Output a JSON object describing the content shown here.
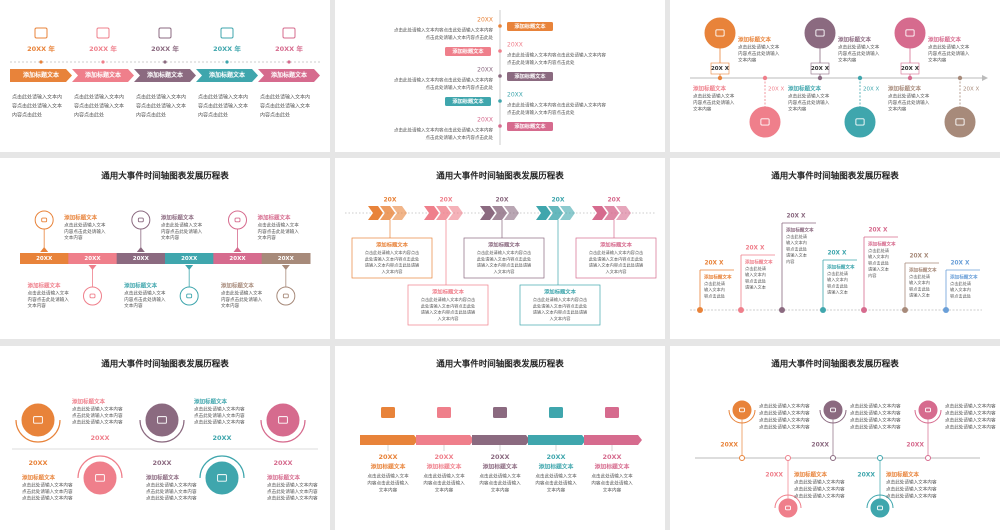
{
  "slides": [
    {
      "items": [
        {
          "date": "20XX 年",
          "heading": "添加标题文本",
          "body": [
            "点击此处请输入文本内",
            "容点击此处请输入文本",
            "内容点击此处"
          ]
        },
        {
          "date": "20XX 年",
          "heading": "添加标题文本",
          "body": [
            "点击此处请输入文本内",
            "容点击此处请输入文本",
            "内容点击此处"
          ]
        },
        {
          "date": "20XX 年",
          "heading": "添加标题文本",
          "body": [
            "点击此处请输入文本内",
            "容点击此处请输入文本",
            "内容点击此处"
          ]
        },
        {
          "date": "20XX 年",
          "heading": "添加标题文本",
          "body": [
            "点击此处请输入文本内",
            "容点击此处请输入文本",
            "内容点击此处"
          ]
        },
        {
          "date": "20XX 年",
          "heading": "添加标题文本",
          "body": [
            "点击此处请输入文本内",
            "容点击此处请输入文本",
            "内容点击此处"
          ]
        }
      ]
    },
    {
      "items": [
        {
          "date": "20XX",
          "heading": "添加标题文本",
          "body": [
            "点击此处请输入文本内容点击此处请输入文本内容",
            "点击此处请输入文本内容点击此处"
          ]
        },
        {
          "date": "20XX",
          "heading": "添加标题文本",
          "body": [
            "点击此处请输入文本内容点击此处请输入文本内容",
            "点击此处请输入文本内容点击此处"
          ]
        },
        {
          "date": "20XX",
          "heading": "添加标题文本",
          "body": [
            "点击此处请输入文本内容点击此处请输入文本内容",
            "点击此处请输入文本内容点击此处"
          ]
        },
        {
          "date": "20XX",
          "heading": "添加标题文本",
          "body": [
            "点击此处请输入文本内容点击此处请输入文本内容",
            "点击此处请输入文本内容点击此处"
          ]
        },
        {
          "date": "20XX",
          "heading": "添加标题文本",
          "body": [
            "点击此处请输入文本内容点击此处请输入文本内容",
            "点击此处请输入文本内容点击此处"
          ]
        }
      ]
    },
    {
      "items": [
        {
          "date": "20X X",
          "heading": "添加标题文本",
          "body": [
            "点击此处请输入文本",
            "内容点击此处请输入",
            "文本内容"
          ]
        },
        {
          "date": "20X X",
          "heading": "添加标题文本",
          "body": [
            "点击此处请输入文本",
            "内容点击此处请输入",
            "文本内容"
          ]
        },
        {
          "date": "20X X",
          "heading": "添加标题文本",
          "body": [
            "点击此处请输入文本",
            "内容点击此处请输入",
            "文本内容"
          ]
        },
        {
          "date": "20X X",
          "heading": "添加标题文本",
          "body": [
            "点击此处请输入文本",
            "内容点击此处请输入",
            "文本内容"
          ]
        },
        {
          "date": "20X X",
          "heading": "添加标题文本",
          "body": [
            "点击此处请输入文本",
            "内容点击此处请输入",
            "文本内容"
          ]
        },
        {
          "date": "20X X",
          "heading": "添加标题文本",
          "body": [
            "点击此处请输入文本",
            "内容点击此处请输入",
            "文本内容"
          ]
        }
      ]
    },
    {
      "title": "通用大事件时间轴图表发展历程表",
      "bar": [
        "20XX",
        "20XX",
        "20XX",
        "20XX",
        "20XX",
        "20XX"
      ],
      "items": [
        {
          "heading": "添加标题文本",
          "body": [
            "点击此处请输入文本",
            "内容点击此处请输入",
            "文本内容"
          ]
        },
        {
          "heading": "添加标题文本",
          "body": [
            "点击此处请输入文本",
            "内容点击此处请输入",
            "文本内容"
          ]
        },
        {
          "heading": "添加标题文本",
          "body": [
            "点击此处请输入文本",
            "内容点击此处请输入",
            "文本内容"
          ]
        },
        {
          "heading": "添加标题文本",
          "body": [
            "点击此处请输入文本",
            "内容点击此处请输入",
            "文本内容"
          ]
        },
        {
          "heading": "添加标题文本",
          "body": [
            "点击此处请输入文本",
            "内容点击此处请输入",
            "文本内容"
          ]
        },
        {
          "heading": "添加标题文本",
          "body": [
            "点击此处请输入文本",
            "内容点击此处请输入",
            "文本内容"
          ]
        }
      ]
    },
    {
      "title": "通用大事件时间轴图表发展历程表",
      "items": [
        {
          "date": "20X",
          "heading": "添加标题文本",
          "body": [
            "点击此处请输入文本内容点击",
            "此处请输入文本内容点击此处",
            "请输入文本内容点击此处请输",
            "入文本内容"
          ]
        },
        {
          "date": "20X",
          "heading": "添加标题文本",
          "body": [
            "点击此处请输入文本内容点击",
            "此处请输入文本内容点击此处",
            "请输入文本内容点击此处请输",
            "入文本内容"
          ]
        },
        {
          "date": "20X",
          "heading": "添加标题文本",
          "body": [
            "点击此处请输入文本内容点击",
            "此处请输入文本内容点击此处",
            "请输入文本内容点击此处请输",
            "入文本内容"
          ]
        },
        {
          "date": "20X",
          "heading": "添加标题文本",
          "body": [
            "点击此处请输入文本内容点击",
            "此处请输入文本内容点击此处",
            "请输入文本内容点击此处请输",
            "入文本内容"
          ]
        },
        {
          "date": "20X",
          "heading": "添加标题文本",
          "body": [
            "点击此处请输入文本内容点击",
            "此处请输入文本内容点击此处",
            "请输入文本内容点击此处请输",
            "入文本内容"
          ]
        }
      ]
    },
    {
      "title": "通用大事件时间轴图表发展历程表",
      "items": [
        {
          "date": "20X X",
          "heading": "添加标题文本",
          "body": [
            "点击此处请",
            "输入文本内",
            "容点击此处"
          ]
        },
        {
          "date": "20X X",
          "heading": "添加标题文本",
          "body": [
            "点击此处请",
            "输入文本内",
            "容点击此处",
            "请输入文本"
          ]
        },
        {
          "date": "20X X",
          "heading": "添加标题文本",
          "body": [
            "点击此处请",
            "输入文本内",
            "容点击此处",
            "请输入文本",
            "内容"
          ]
        },
        {
          "date": "20X X",
          "heading": "添加标题文本",
          "body": [
            "点击此处请",
            "输入文本内",
            "容点击此处",
            "请输入文本"
          ]
        },
        {
          "date": "20X X",
          "heading": "添加标题文本",
          "body": [
            "点击此处请",
            "输入文本内",
            "容点击此处",
            "请输入文本",
            "内容"
          ]
        },
        {
          "date": "20X X",
          "heading": "添加标题文本",
          "body": [
            "点击此处请",
            "输入文本内",
            "容点击此处",
            "请输入文本"
          ]
        },
        {
          "date": "20X X",
          "heading": "添加标题文本",
          "body": [
            "点击此处请",
            "输入文本内",
            "容点击此处"
          ]
        }
      ]
    },
    {
      "title": "通用大事件时间轴图表发展历程表",
      "items": [
        {
          "date": "20XX",
          "heading": "添加标题文本",
          "body": [
            "点击此处请输入文本内容",
            "点击此处请输入文本内容",
            "点击此处请输入文本内容"
          ]
        },
        {
          "date": "20XX",
          "heading": "添加标题文本",
          "body": [
            "点击此处请输入文本内容",
            "点击此处请输入文本内容",
            "点击此处请输入文本内容"
          ]
        },
        {
          "date": "20XX",
          "heading": "添加标题文本",
          "body": [
            "点击此处请输入文本内容",
            "点击此处请输入文本内容",
            "点击此处请输入文本内容"
          ]
        },
        {
          "date": "20XX",
          "heading": "添加标题文本",
          "body": [
            "点击此处请输入文本内容",
            "点击此处请输入文本内容",
            "点击此处请输入文本内容"
          ]
        },
        {
          "date": "20XX",
          "heading": "添加标题文本",
          "body": [
            "点击此处请输入文本内容",
            "点击此处请输入文本内容",
            "点击此处请输入文本内容"
          ]
        }
      ]
    },
    {
      "title": "通用大事件时间轴图表发展历程表",
      "items": [
        {
          "date": "20XX",
          "heading": "添加标题文本",
          "body": [
            "点击此处请输入文本",
            "内容点击此处请输入",
            "文本内容"
          ]
        },
        {
          "date": "20XX",
          "heading": "添加标题文本",
          "body": [
            "点击此处请输入文本",
            "内容点击此处请输入",
            "文本内容"
          ]
        },
        {
          "date": "20XX",
          "heading": "添加标题文本",
          "body": [
            "点击此处请输入文本",
            "内容点击此处请输入",
            "文本内容"
          ]
        },
        {
          "date": "20XX",
          "heading": "添加标题文本",
          "body": [
            "点击此处请输入文本",
            "内容点击此处请输入",
            "文本内容"
          ]
        },
        {
          "date": "20XX",
          "heading": "添加标题文本",
          "body": [
            "点击此处请输入文本",
            "内容点击此处请输入",
            "文本内容"
          ]
        }
      ]
    },
    {
      "title": "通用大事件时间轴图表发展历程表",
      "items": [
        {
          "date": "20XX",
          "body": [
            "点击此处请输入文本内容",
            "点击此处请输入文本内容",
            "点击此处请输入文本内容",
            "点击此处请输入文本内容"
          ]
        },
        {
          "date": "20XX",
          "heading": "添加标题文本",
          "body": [
            "点击此处请输入文本内容",
            "点击此处请输入文本内容",
            "点击此处请输入文本内容"
          ]
        },
        {
          "date": "20XX",
          "body": [
            "点击此处请输入文本内容",
            "点击此处请输入文本内容",
            "点击此处请输入文本内容",
            "点击此处请输入文本内容"
          ]
        },
        {
          "date": "20XX",
          "heading": "添加标题文本",
          "body": [
            "点击此处请输入文本内容",
            "点击此处请输入文本内容",
            "点击此处请输入文本内容"
          ]
        },
        {
          "date": "20XX",
          "body": [
            "点击此处请输入文本内容",
            "点击此处请输入文本内容",
            "点击此处请输入文本内容",
            "点击此处请输入文本内容"
          ]
        }
      ]
    }
  ]
}
